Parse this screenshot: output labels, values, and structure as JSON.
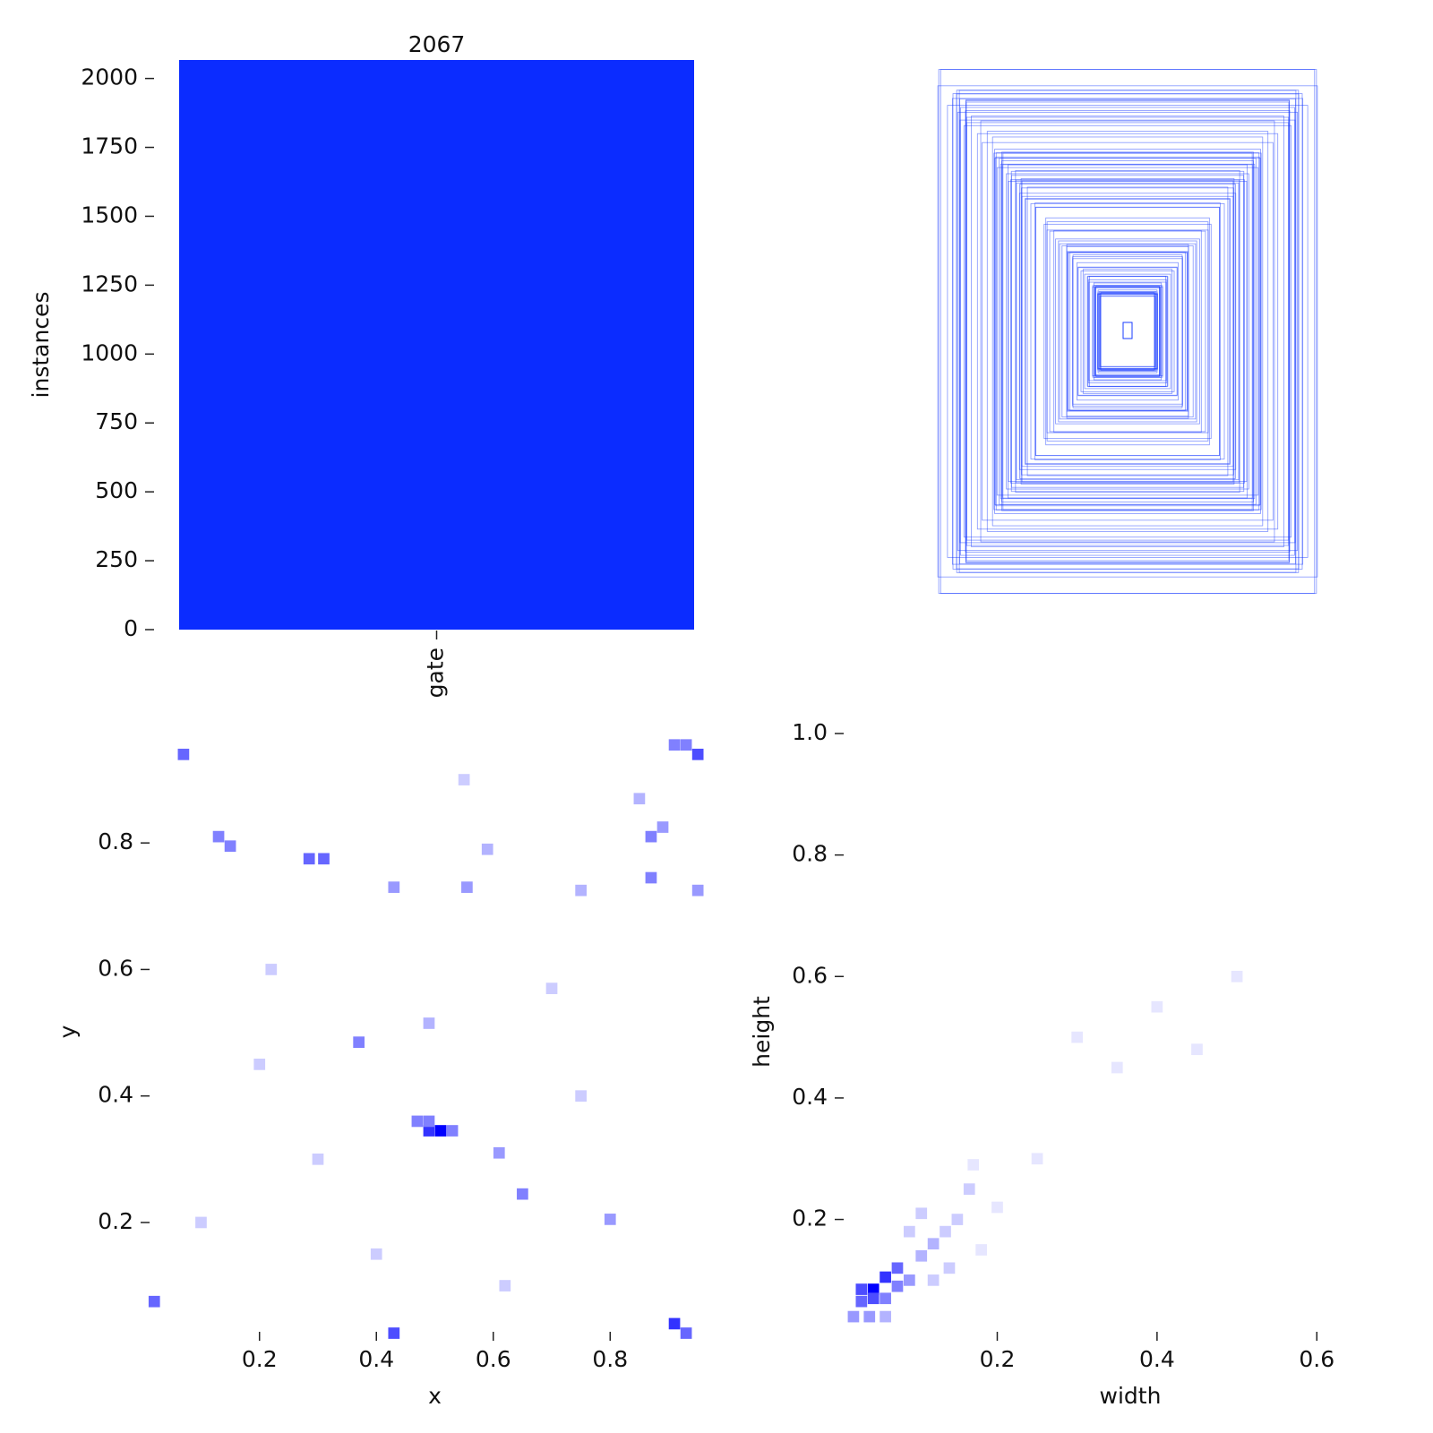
{
  "chart_data": [
    {
      "type": "bar",
      "ylabel": "instances",
      "categories": [
        "gate"
      ],
      "values": [
        2067
      ],
      "color": "#0b2cff",
      "ylim": [
        0,
        2067
      ],
      "yticks": [
        0,
        250,
        500,
        750,
        1000,
        1250,
        1500,
        1750,
        2000
      ]
    },
    {
      "type": "heatmap",
      "xlabel": "x",
      "ylabel": "y",
      "color": "#0000ff",
      "xlim": [
        0.015,
        0.985
      ],
      "ylim": [
        0.03,
        0.973
      ],
      "xticks": [
        0.2,
        0.4,
        0.6,
        0.8
      ],
      "yticks": [
        0.2,
        0.4,
        0.6,
        0.8
      ],
      "x": [
        0.51,
        0.49,
        0.47,
        0.53,
        0.49,
        0.91,
        0.93,
        0.95,
        0.07,
        0.13,
        0.15,
        0.285,
        0.31,
        0.43,
        0.555,
        0.87,
        0.87,
        0.89,
        0.37,
        0.65,
        0.61,
        0.8,
        0.91,
        0.93,
        0.43,
        0.02,
        0.75,
        0.95,
        0.85,
        0.49,
        0.59,
        0.22,
        0.7,
        0.3,
        0.1,
        0.62,
        0.4,
        0.75,
        0.2,
        0.55
      ],
      "y": [
        0.345,
        0.345,
        0.36,
        0.345,
        0.36,
        0.955,
        0.955,
        0.94,
        0.94,
        0.81,
        0.795,
        0.775,
        0.775,
        0.73,
        0.73,
        0.745,
        0.81,
        0.825,
        0.485,
        0.245,
        0.31,
        0.205,
        0.04,
        0.025,
        0.025,
        0.075,
        0.725,
        0.725,
        0.87,
        0.515,
        0.79,
        0.6,
        0.57,
        0.3,
        0.2,
        0.1,
        0.15,
        0.4,
        0.45,
        0.9
      ],
      "values": [
        10,
        8,
        5,
        5,
        5,
        5,
        5,
        7,
        6,
        5,
        5,
        6,
        6,
        4,
        4,
        5,
        5,
        4,
        5,
        5,
        4,
        4,
        8,
        6,
        7,
        6,
        3,
        4,
        3,
        3,
        3,
        2,
        2,
        2,
        2,
        2,
        2,
        2,
        2,
        2
      ]
    },
    {
      "type": "heatmap",
      "xlabel": "width",
      "ylabel": "height",
      "color": "#0000ff",
      "xlim": [
        0.01,
        0.723
      ],
      "ylim": [
        0.018,
        1.0
      ],
      "xticks": [
        0.2,
        0.4,
        0.6
      ],
      "yticks": [
        0.2,
        0.4,
        0.6,
        0.8,
        {
          "value": 1,
          "label": "1.0"
        }
      ],
      "x": [
        0.045,
        0.03,
        0.06,
        0.075,
        0.045,
        0.03,
        0.06,
        0.075,
        0.09,
        0.105,
        0.12,
        0.135,
        0.15,
        0.165,
        0.09,
        0.105,
        0.02,
        0.04,
        0.06,
        0.12,
        0.14,
        0.18,
        0.2,
        0.3,
        0.4,
        0.45,
        0.35,
        0.5,
        0.25,
        0.17
      ],
      "y": [
        0.085,
        0.085,
        0.105,
        0.12,
        0.07,
        0.065,
        0.07,
        0.09,
        0.1,
        0.14,
        0.16,
        0.18,
        0.2,
        0.25,
        0.18,
        0.21,
        0.04,
        0.04,
        0.04,
        0.1,
        0.12,
        0.15,
        0.22,
        0.5,
        0.55,
        0.48,
        0.45,
        0.6,
        0.3,
        0.29
      ],
      "values": [
        10,
        7,
        8,
        6,
        7,
        6,
        5,
        5,
        4,
        3,
        3,
        2,
        2,
        2,
        2,
        2,
        4,
        4,
        3,
        2,
        2,
        1,
        1,
        1,
        1,
        1,
        1,
        1,
        1,
        1
      ]
    }
  ]
}
